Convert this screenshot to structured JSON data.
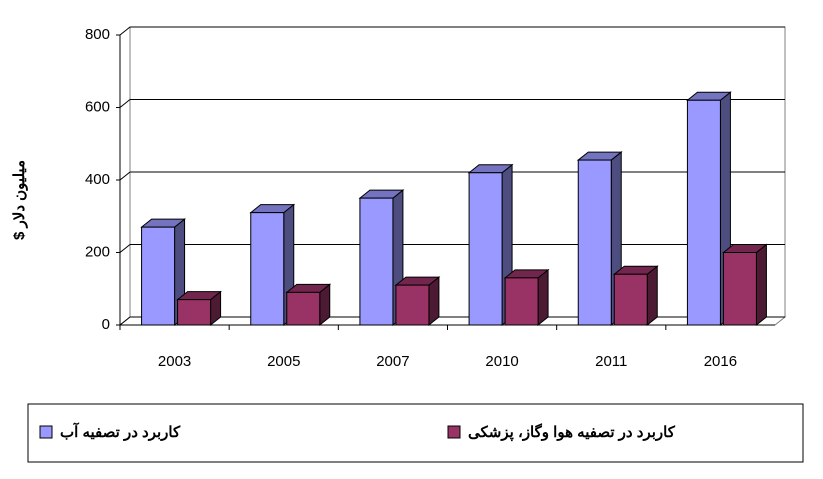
{
  "chart_data": {
    "type": "bar3d",
    "y_label": "میلیون دلار $",
    "categories": [
      "2003",
      "2005",
      "2007",
      "2010",
      "2011",
      "2016"
    ],
    "series": [
      {
        "name": "کاربرد در تصفیه آب",
        "color": "#9999ff",
        "values": [
          270,
          310,
          350,
          420,
          455,
          620
        ]
      },
      {
        "name": "کاربرد در تصفیه هوا وگاز، پزشکی",
        "color": "#993366",
        "values": [
          70,
          90,
          110,
          130,
          140,
          200
        ]
      }
    ],
    "ylim": [
      0,
      800
    ],
    "yticks": [
      0,
      200,
      400,
      600,
      800
    ],
    "grid": true
  }
}
